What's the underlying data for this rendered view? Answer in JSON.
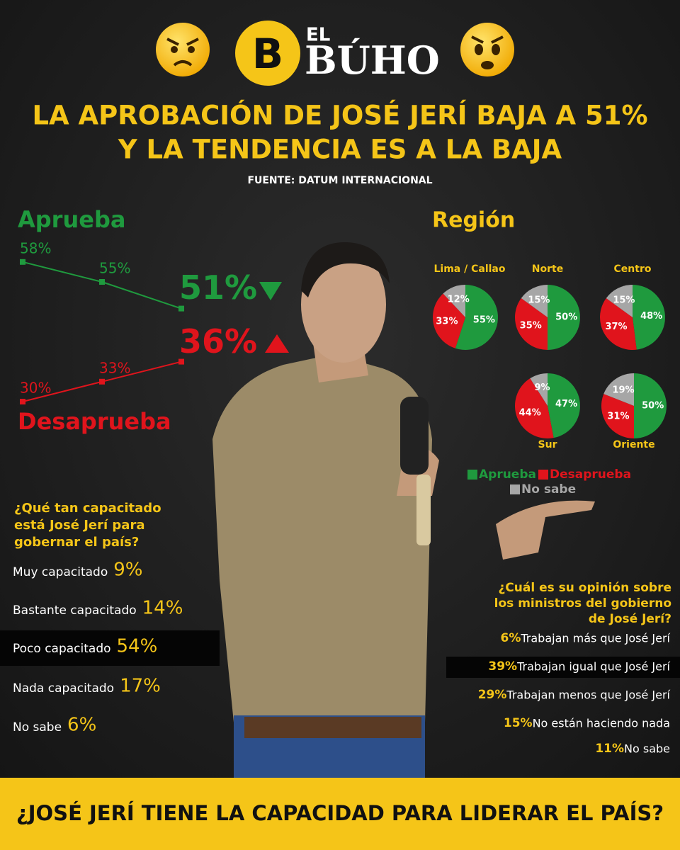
{
  "header": {
    "brand_small": "EL",
    "brand": "BÚHO",
    "title": [
      "LA APROBACIÓN DE JOSÉ JERÍ BAJA A 51%",
      "Y LA TENDENCIA ES A LA BAJA"
    ],
    "source": "FUENTE: DATUM INTERNACIONAL"
  },
  "chart_data": [
    {
      "type": "line",
      "categories": [
        null,
        null,
        null
      ],
      "series": [
        {
          "name": "Aprueba",
          "color": "#1f9a3e",
          "values": [
            58,
            55,
            51
          ],
          "value_labels": [
            "58%",
            "55%",
            "51%"
          ]
        },
        {
          "name": "Desaprueba",
          "color": "#e0141c",
          "values": [
            30,
            33,
            36
          ],
          "value_labels": [
            "30%",
            "33%",
            "36%"
          ]
        }
      ]
    },
    {
      "type": "pie",
      "title": "Región",
      "categories": [
        "Aprueba",
        "Desaprueba",
        "No sabe"
      ],
      "colors": [
        "#1f9a3e",
        "#e0141c",
        "#a6a6a6"
      ],
      "pies": [
        {
          "name": "Lima / Callao",
          "values": [
            55,
            33,
            12
          ],
          "value_labels": [
            "55%",
            "33%",
            "12%"
          ]
        },
        {
          "name": "Norte",
          "values": [
            50,
            35,
            15
          ],
          "value_labels": [
            "50%",
            "35%",
            "15%"
          ]
        },
        {
          "name": "Centro",
          "values": [
            48,
            37,
            15
          ],
          "value_labels": [
            "48%",
            "37%",
            "15%"
          ]
        },
        {
          "name": "Sur",
          "values": [
            47,
            44,
            9
          ],
          "value_labels": [
            "47%",
            "44%",
            "9%"
          ]
        },
        {
          "name": "Oriente",
          "values": [
            50,
            31,
            19
          ],
          "value_labels": [
            "50%",
            "31%",
            "19%"
          ]
        }
      ]
    }
  ],
  "capacity_question": {
    "title": [
      "¿Qué tan capacitado",
      "está José Jerí  para",
      "gobernar el país?"
    ],
    "items": [
      {
        "label": "Muy capacitado",
        "value": "9%"
      },
      {
        "label": "Bastante capacitado",
        "value": "14%"
      },
      {
        "label": "Poco capacitado",
        "value": "54%",
        "highlight": true
      },
      {
        "label": "Nada capacitado",
        "value": "17%"
      },
      {
        "label": "No sabe",
        "value": "6%"
      }
    ]
  },
  "ministers_question": {
    "title": [
      "¿Cuál es su opinión sobre",
      "los ministros del gobierno",
      "de José Jerí?"
    ],
    "items": [
      {
        "value": "6%",
        "label": "Trabajan más que José Jerí"
      },
      {
        "value": "39%",
        "label": "Trabajan igual que José Jerí",
        "highlight": true
      },
      {
        "value": "29%",
        "label": "Trabajan menos que José Jerí"
      },
      {
        "value": "15%",
        "label": "No están haciendo nada"
      },
      {
        "value": "11%",
        "label": " No sabe"
      }
    ]
  },
  "footer": {
    "question": "¿JOSÉ JERÍ TIENE LA CAPACIDAD PARA LIDERAR EL PAÍS?"
  }
}
